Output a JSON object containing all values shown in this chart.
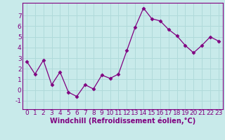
{
  "x": [
    0,
    1,
    2,
    3,
    4,
    5,
    6,
    7,
    8,
    9,
    10,
    11,
    12,
    13,
    14,
    15,
    16,
    17,
    18,
    19,
    20,
    21,
    22,
    23
  ],
  "y": [
    2.7,
    1.5,
    2.8,
    0.5,
    1.7,
    -0.2,
    -0.6,
    0.5,
    0.1,
    1.4,
    1.1,
    1.5,
    3.7,
    5.9,
    7.7,
    6.7,
    6.5,
    5.7,
    5.1,
    4.2,
    3.5,
    4.2,
    5.0,
    4.6
  ],
  "line_color": "#800080",
  "marker": "D",
  "marker_size": 2.5,
  "bg_color": "#c8eaea",
  "grid_color": "#b0dada",
  "xlabel": "Windchill (Refroidissement éolien,°C)",
  "ylabel": "",
  "xlim": [
    -0.5,
    23.5
  ],
  "ylim": [
    -1.8,
    8.2
  ],
  "yticks": [
    -1,
    0,
    1,
    2,
    3,
    4,
    5,
    6,
    7
  ],
  "xticks": [
    0,
    1,
    2,
    3,
    4,
    5,
    6,
    7,
    8,
    9,
    10,
    11,
    12,
    13,
    14,
    15,
    16,
    17,
    18,
    19,
    20,
    21,
    22,
    23
  ],
  "tick_fontsize": 6.5,
  "xlabel_fontsize": 7.0
}
